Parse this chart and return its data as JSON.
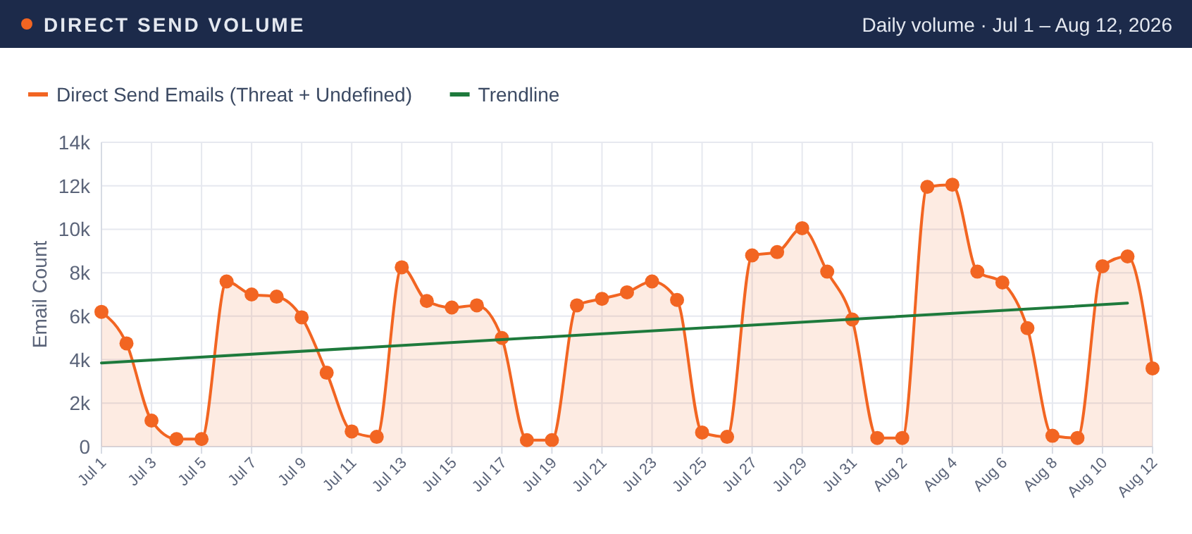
{
  "chart_data": {
    "type": "area",
    "title": "DIRECT SEND VOLUME",
    "subtitle": "Daily volume · Jul 1 – Aug 12, 2026",
    "ylabel": "Email Count",
    "legend": "top left",
    "grid": true,
    "marker": "circle",
    "ylim": [
      0,
      14000
    ],
    "yticks": [
      {
        "value": 0,
        "label": "0"
      },
      {
        "value": 2000,
        "label": "2k"
      },
      {
        "value": 4000,
        "label": "4k"
      },
      {
        "value": 6000,
        "label": "6k"
      },
      {
        "value": 8000,
        "label": "8k"
      },
      {
        "value": 10000,
        "label": "10k"
      },
      {
        "value": 12000,
        "label": "12k"
      },
      {
        "value": 14000,
        "label": "14k"
      }
    ],
    "xlim": [
      "2026-07-01",
      "2026-08-12"
    ],
    "xticks": [
      {
        "value": "2026-07-01",
        "label": "Jul 1"
      },
      {
        "value": "2026-07-03",
        "label": "Jul 3"
      },
      {
        "value": "2026-07-05",
        "label": "Jul 5"
      },
      {
        "value": "2026-07-07",
        "label": "Jul 7"
      },
      {
        "value": "2026-07-09",
        "label": "Jul 9"
      },
      {
        "value": "2026-07-11",
        "label": "Jul 11"
      },
      {
        "value": "2026-07-13",
        "label": "Jul 13"
      },
      {
        "value": "2026-07-15",
        "label": "Jul 15"
      },
      {
        "value": "2026-07-17",
        "label": "Jul 17"
      },
      {
        "value": "2026-07-19",
        "label": "Jul 19"
      },
      {
        "value": "2026-07-21",
        "label": "Jul 21"
      },
      {
        "value": "2026-07-23",
        "label": "Jul 23"
      },
      {
        "value": "2026-07-25",
        "label": "Jul 25"
      },
      {
        "value": "2026-07-27",
        "label": "Jul 27"
      },
      {
        "value": "2026-07-29",
        "label": "Jul 29"
      },
      {
        "value": "2026-07-31",
        "label": "Jul 31"
      },
      {
        "value": "2026-08-02",
        "label": "Aug 2"
      },
      {
        "value": "2026-08-04",
        "label": "Aug 4"
      },
      {
        "value": "2026-08-06",
        "label": "Aug 6"
      },
      {
        "value": "2026-08-08",
        "label": "Aug 8"
      },
      {
        "value": "2026-08-10",
        "label": "Aug 10"
      },
      {
        "value": "2026-08-12",
        "label": "Aug 12"
      }
    ],
    "x": [
      "2026-07-01",
      "2026-07-02",
      "2026-07-03",
      "2026-07-04",
      "2026-07-05",
      "2026-07-06",
      "2026-07-07",
      "2026-07-08",
      "2026-07-09",
      "2026-07-10",
      "2026-07-11",
      "2026-07-12",
      "2026-07-13",
      "2026-07-14",
      "2026-07-15",
      "2026-07-16",
      "2026-07-17",
      "2026-07-18",
      "2026-07-19",
      "2026-07-20",
      "2026-07-21",
      "2026-07-22",
      "2026-07-23",
      "2026-07-24",
      "2026-07-25",
      "2026-07-26",
      "2026-07-27",
      "2026-07-28",
      "2026-07-29",
      "2026-07-30",
      "2026-07-31",
      "2026-08-01",
      "2026-08-02",
      "2026-08-03",
      "2026-08-04",
      "2026-08-05",
      "2026-08-06",
      "2026-08-07",
      "2026-08-08",
      "2026-08-09",
      "2026-08-10",
      "2026-08-11",
      "2026-08-12"
    ],
    "series": [
      {
        "name": "Direct Send Emails (Threat + Undefined)",
        "color": "#f26522",
        "values": [
          6200,
          4750,
          1200,
          350,
          350,
          7600,
          7000,
          6900,
          5950,
          3400,
          700,
          450,
          8250,
          6700,
          6400,
          6500,
          5000,
          300,
          300,
          6500,
          6800,
          7100,
          7600,
          6750,
          650,
          450,
          8800,
          8950,
          10050,
          8050,
          5850,
          400,
          400,
          11950,
          12050,
          8050,
          7550,
          5450,
          500,
          400,
          8300,
          8750,
          3600
        ]
      },
      {
        "name": "Trendline",
        "type": "line",
        "color": "#1e7a3c",
        "marker": "none",
        "x": [
          "2026-07-01",
          "2026-08-11"
        ],
        "values": [
          3850,
          6600
        ]
      }
    ]
  }
}
